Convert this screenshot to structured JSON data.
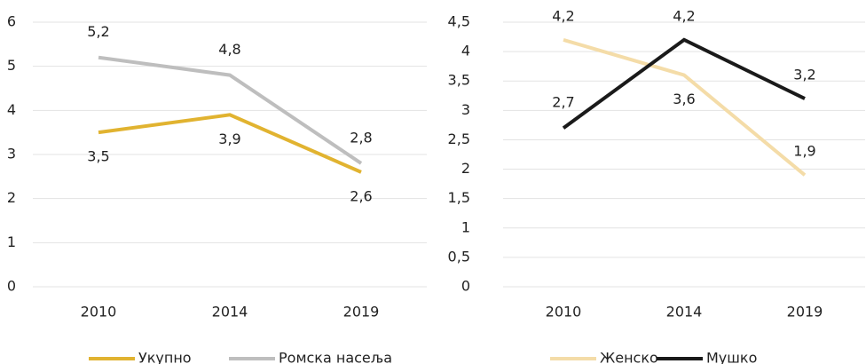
{
  "chart_data": [
    {
      "type": "line",
      "categories": [
        "2010",
        "2014",
        "2019"
      ],
      "series": [
        {
          "name": "Укупно",
          "color": "#e1b330",
          "values": [
            3.5,
            3.9,
            2.6
          ],
          "value_labels": [
            "3,5",
            "3,9",
            "2,6"
          ]
        },
        {
          "name": "Ромска насеља",
          "color": "#bebebe",
          "values": [
            5.2,
            4.8,
            2.8
          ],
          "value_labels": [
            "5,2",
            "4,8",
            "2,8"
          ]
        }
      ],
      "ylim": [
        0,
        6
      ],
      "yticks": [
        0,
        1,
        2,
        3,
        4,
        5,
        6
      ],
      "grid": true
    },
    {
      "type": "line",
      "categories": [
        "2010",
        "2014",
        "2019"
      ],
      "series": [
        {
          "name": "Женско",
          "color": "#f4dca8",
          "values": [
            4.2,
            3.6,
            1.9
          ],
          "value_labels": [
            "4,2",
            "3,6",
            "1,9"
          ]
        },
        {
          "name": "Мушко",
          "color": "#1a1a1a",
          "values": [
            2.7,
            4.2,
            3.2
          ],
          "value_labels": [
            "2,7",
            "4,2",
            "3,2"
          ]
        }
      ],
      "ylim": [
        0,
        4.5
      ],
      "yticks": [
        0,
        {
          "value": 0.5,
          "label": "0,5"
        },
        1,
        {
          "value": 1.5,
          "label": "1,5"
        },
        2,
        {
          "value": 2.5,
          "label": "2,5"
        },
        3,
        {
          "value": 3.5,
          "label": "3,5"
        },
        4,
        {
          "value": 4.5,
          "label": "4,5"
        }
      ],
      "grid": true
    }
  ]
}
